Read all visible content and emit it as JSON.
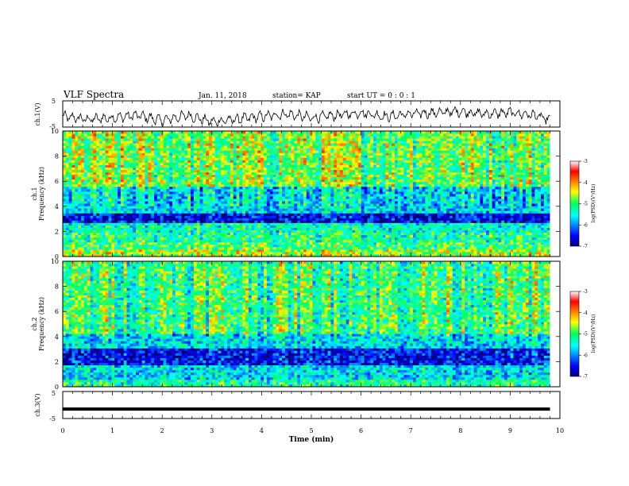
{
  "header": {
    "title": "VLF Spectra",
    "date": "Jan. 11, 2018",
    "station": "station= KAP",
    "start": "start UT =  0 : 0 : 1"
  },
  "chart_data": [
    {
      "type": "line",
      "panel": "ch1-waveform",
      "ylabel": "ch.1(V)",
      "ylim": [
        -5,
        5
      ],
      "yticks": [
        "5",
        "-5"
      ],
      "xlim": [
        0,
        10
      ],
      "description_series": {
        "name": "ch.1 voltage",
        "x": [
          0,
          0.5,
          1,
          1.5,
          2,
          2.5,
          3,
          3.5,
          4,
          4.5,
          5,
          5.5,
          6,
          6.5,
          7,
          7.5,
          8,
          8.5,
          9,
          9.5,
          9.8
        ],
        "values": [
          -1,
          -2,
          -1.5,
          -0.5,
          -2.5,
          -0.5,
          -3,
          -2,
          -1,
          0,
          -1.5,
          -0.5,
          0.5,
          -1,
          0,
          0.5,
          1,
          0,
          0.5,
          -0.5,
          -2.5
        ]
      }
    },
    {
      "type": "heatmap",
      "panel": "ch1-spectrogram",
      "ylabel": "ch.1 Frequency (kHz)",
      "yticks": [
        "0",
        "2",
        "4",
        "6",
        "8",
        "10"
      ],
      "ylim": [
        0,
        10
      ],
      "xlim": [
        0,
        10
      ],
      "colorbar": {
        "label": "log(PSD)(V²/Hz)",
        "ticks": [
          "-3",
          "-4",
          "-5",
          "-6",
          "-7"
        ],
        "range": [
          -7,
          -3
        ]
      },
      "bands": [
        {
          "f": [
            0,
            0.6
          ],
          "level": -4.6
        },
        {
          "f": [
            0.6,
            1.2
          ],
          "level": -5.0
        },
        {
          "f": [
            1.2,
            2.0
          ],
          "level": -5.2
        },
        {
          "f": [
            2.0,
            2.6
          ],
          "level": -5.4
        },
        {
          "f": [
            2.6,
            3.5
          ],
          "level": -6.6
        },
        {
          "f": [
            3.5,
            5.5
          ],
          "level": -5.6
        },
        {
          "f": [
            5.5,
            10
          ],
          "level": -4.8
        }
      ]
    },
    {
      "type": "heatmap",
      "panel": "ch2-spectrogram",
      "ylabel": "ch.2 Frequency (kHz)",
      "yticks": [
        "0",
        "2",
        "4",
        "6",
        "8",
        "10"
      ],
      "ylim": [
        0,
        10
      ],
      "xlim": [
        0,
        10
      ],
      "colorbar": {
        "label": "log(PSD)(V²/Hz)",
        "ticks": [
          "-3",
          "-4",
          "-5",
          "-6",
          "-7"
        ],
        "range": [
          -7,
          -3
        ]
      },
      "bands": [
        {
          "f": [
            0,
            0.5
          ],
          "level": -5.2
        },
        {
          "f": [
            0.5,
            1.8
          ],
          "level": -5.6
        },
        {
          "f": [
            1.8,
            3.0
          ],
          "level": -6.5
        },
        {
          "f": [
            3.0,
            4.2
          ],
          "level": -5.6
        },
        {
          "f": [
            4.2,
            10
          ],
          "level": -5.0
        }
      ]
    },
    {
      "type": "line",
      "panel": "ch3-waveform",
      "ylabel": "ch.3(V)",
      "ylim": [
        -5,
        5
      ],
      "yticks": [
        "5",
        "-5"
      ],
      "xlim": [
        0,
        10
      ],
      "xlabel": "Time (min)",
      "xticks": [
        "0",
        "1",
        "2",
        "3",
        "4",
        "5",
        "6",
        "7",
        "8",
        "9",
        "10"
      ],
      "description_series": {
        "name": "ch.3 voltage",
        "x": [
          0,
          9.8
        ],
        "values": [
          -1.5,
          -1.5
        ]
      }
    }
  ]
}
